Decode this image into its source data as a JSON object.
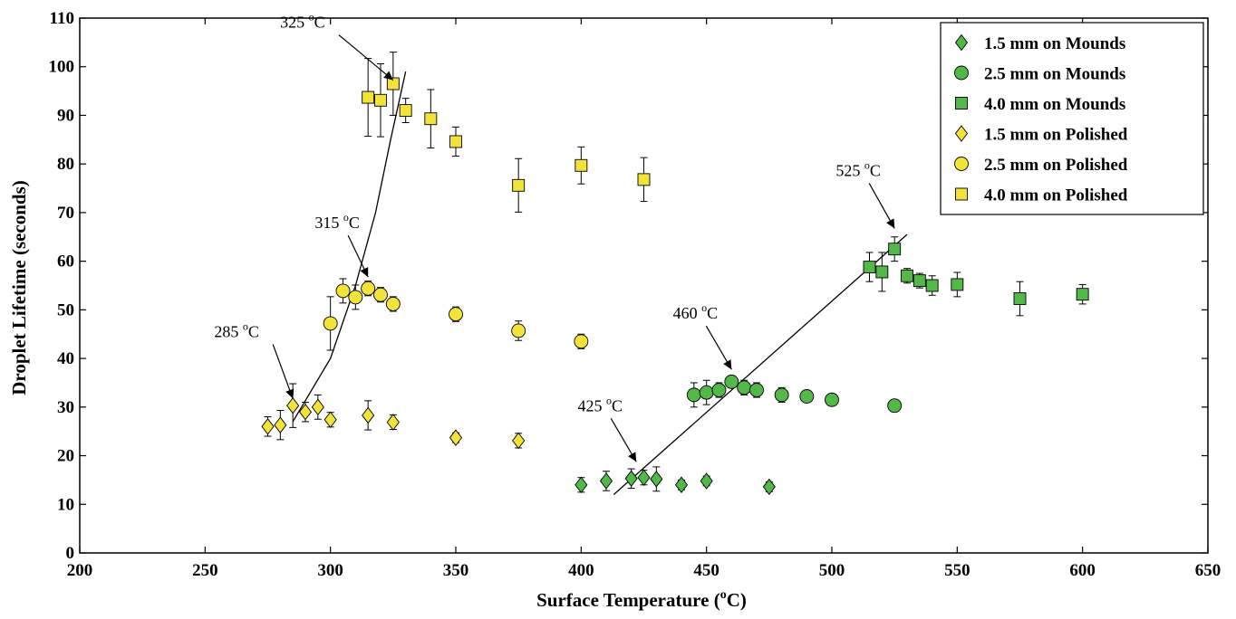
{
  "chart_data": {
    "type": "scatter",
    "xlabel": "Surface Temperature",
    "xlabel_unit": "(",
    "xlabel_deg": "o",
    "xlabel_unit_end": "C)",
    "ylabel": "Droplet Lifetime (seconds)",
    "xlim": [
      200,
      650
    ],
    "ylim": [
      0,
      110
    ],
    "xticks": [
      200,
      250,
      300,
      350,
      400,
      450,
      500,
      550,
      600,
      650
    ],
    "yticks": [
      0,
      10,
      20,
      30,
      40,
      50,
      60,
      70,
      80,
      90,
      100,
      110
    ],
    "grid": false,
    "legend_position": "top-right",
    "colors": {
      "mounds": "#52b848",
      "polished": "#f2e33a",
      "edge": "#000000"
    },
    "series": [
      {
        "name": "1.5 mm on Mounds",
        "marker": "diamond",
        "color": "mounds",
        "points": [
          [
            400,
            14,
            1.5
          ],
          [
            410,
            14.8,
            2
          ],
          [
            420,
            15.3,
            2
          ],
          [
            425,
            15.5,
            1.5
          ],
          [
            430,
            15.2,
            2.5
          ],
          [
            440,
            14,
            1
          ],
          [
            450,
            14.8,
            1
          ],
          [
            475,
            13.6,
            1
          ]
        ]
      },
      {
        "name": "2.5 mm on Mounds",
        "marker": "circle",
        "color": "mounds",
        "points": [
          [
            445,
            32.5,
            2.5
          ],
          [
            450,
            33,
            2.5
          ],
          [
            455,
            33.5,
            1.5
          ],
          [
            460,
            35.2,
            1
          ],
          [
            465,
            34,
            1.5
          ],
          [
            470,
            33.5,
            1.5
          ],
          [
            480,
            32.5,
            1.5
          ],
          [
            490,
            32.2,
            1
          ],
          [
            500,
            31.5,
            1
          ],
          [
            525,
            30.3,
            1.2
          ]
        ]
      },
      {
        "name": "4.0 mm on Mounds",
        "marker": "square",
        "color": "mounds",
        "points": [
          [
            515,
            58.8,
            3
          ],
          [
            520,
            57.8,
            4
          ],
          [
            525,
            62.5,
            2.5
          ],
          [
            530,
            57,
            1.5
          ],
          [
            535,
            56,
            1.5
          ],
          [
            540,
            55,
            2
          ],
          [
            550,
            55.2,
            2.5
          ],
          [
            575,
            52.3,
            3.5
          ],
          [
            600,
            53.2,
            2
          ]
        ]
      },
      {
        "name": "1.5 mm on Polished",
        "marker": "diamond",
        "color": "polished",
        "points": [
          [
            275,
            26,
            2
          ],
          [
            280,
            26.3,
            3
          ],
          [
            285,
            30.3,
            4.5
          ],
          [
            290,
            29,
            2
          ],
          [
            295,
            30,
            2.5
          ],
          [
            300,
            27.4,
            1.5
          ],
          [
            315,
            28.3,
            3
          ],
          [
            325,
            26.9,
            1.5
          ],
          [
            350,
            23.7,
            1
          ],
          [
            375,
            23.1,
            1.5
          ]
        ]
      },
      {
        "name": "2.5 mm on Polished",
        "marker": "circle",
        "color": "polished",
        "points": [
          [
            300,
            47.2,
            5.5
          ],
          [
            305,
            53.9,
            2.5
          ],
          [
            310,
            52.6,
            2.5
          ],
          [
            315,
            54.4,
            1.5
          ],
          [
            320,
            53.1,
            1.5
          ],
          [
            325,
            51.2,
            1.5
          ],
          [
            350,
            49.1,
            1.5
          ],
          [
            375,
            45.7,
            2
          ],
          [
            400,
            43.5,
            1.5
          ]
        ]
      },
      {
        "name": "4.0 mm on Polished",
        "marker": "square",
        "color": "polished",
        "points": [
          [
            315,
            93.7,
            8
          ],
          [
            320,
            93.1,
            7.5
          ],
          [
            325,
            96.5,
            6.5
          ],
          [
            330,
            91,
            2.5
          ],
          [
            340,
            89.3,
            6
          ],
          [
            350,
            84.6,
            3
          ],
          [
            375,
            75.6,
            5.5
          ],
          [
            400,
            79.7,
            3.8
          ],
          [
            425,
            76.8,
            4.5
          ]
        ]
      }
    ],
    "fit_lines": [
      {
        "points": [
          [
            285,
            27
          ],
          [
            300,
            40
          ],
          [
            310,
            55
          ],
          [
            318,
            70
          ],
          [
            324,
            85
          ],
          [
            330,
            99
          ]
        ]
      },
      {
        "points": [
          [
            413,
            12
          ],
          [
            530,
            65.5
          ]
        ]
      }
    ],
    "annotations": [
      {
        "label": "325",
        "deg": "o",
        "unit": "C",
        "target": [
          325,
          96.5
        ]
      },
      {
        "label": "315",
        "deg": "o",
        "unit": "C",
        "target": [
          315,
          56
        ]
      },
      {
        "label": "285",
        "deg": "o",
        "unit": "C",
        "target": [
          285,
          31
        ]
      },
      {
        "label": "525",
        "deg": "o",
        "unit": "C",
        "target": [
          525,
          66
        ]
      },
      {
        "label": "460",
        "deg": "o",
        "unit": "C",
        "target": [
          460,
          37
        ]
      },
      {
        "label": "425",
        "deg": "o",
        "unit": "C",
        "target": [
          422,
          18
        ]
      }
    ]
  }
}
